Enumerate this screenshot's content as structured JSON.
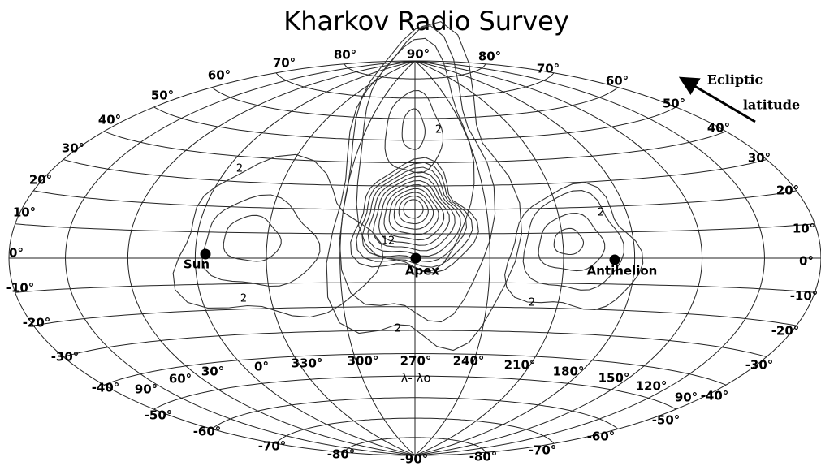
{
  "title": "Kharkov Radio Survey",
  "legend": {
    "line1": "Ecliptic",
    "line2": "latitude"
  },
  "pole_labels": [
    "90°",
    "-90°"
  ],
  "latitude_labels_left": [
    "80°",
    "70°",
    "60°",
    "50°",
    "40°",
    "30°",
    "20°",
    "10°",
    "0°",
    "-10°",
    "-20°",
    "-30°",
    "-40°",
    "-50°",
    "-60°",
    "-70°",
    "-80°"
  ],
  "latitude_labels_right": [
    "80°",
    "70°",
    "60°",
    "50°",
    "40°",
    "30°",
    "20°",
    "10°",
    "0°",
    "-10°",
    "-20°",
    "-30°",
    "-40°",
    "-50°",
    "-60°",
    "-70°",
    "-80°"
  ],
  "longitude_labels": [
    "90°",
    "60°",
    "30°",
    "0°",
    "330°",
    "300°",
    "270°",
    "240°",
    "210°",
    "180°",
    "150°",
    "120°",
    "90°"
  ],
  "longitude_axis_label": "λ- λo",
  "points": [
    {
      "label": "Sun"
    },
    {
      "label": "Apex"
    },
    {
      "label": "Antihelion"
    }
  ],
  "contour_labels": [
    "2",
    "2",
    "2",
    "2",
    "2",
    "2",
    "12"
  ]
}
